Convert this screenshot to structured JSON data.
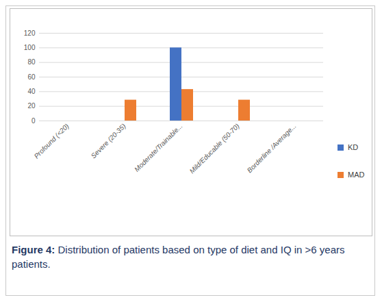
{
  "chart_data": {
    "type": "bar",
    "title": "Figure 4: Distribution of patients based on type of diet and IQ in >6 years patients.",
    "categories": [
      "Profound (<20)",
      "Severe (20-35)",
      "Moderate/Trainable...",
      "Mild/Educable (50-70)",
      "Borderline /Average..."
    ],
    "series": [
      {
        "name": "KD",
        "color": "#4472c4",
        "values": [
          0,
          0,
          100,
          0,
          0
        ]
      },
      {
        "name": "MAD",
        "color": "#ed7d31",
        "values": [
          0,
          28.5,
          43,
          28.5,
          0
        ]
      }
    ],
    "ylim": [
      0,
      120
    ],
    "yticks": [
      0,
      20,
      40,
      60,
      80,
      100,
      120
    ],
    "grid": true,
    "legend": "right"
  }
}
